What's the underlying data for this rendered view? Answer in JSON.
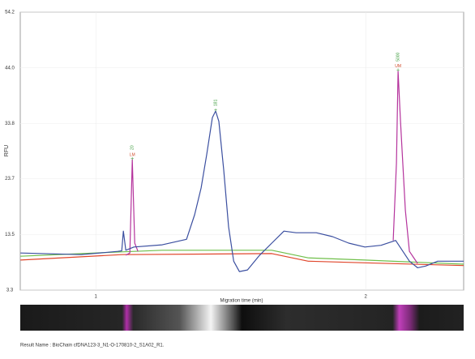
{
  "chart_data": {
    "type": "line",
    "x_label": "Migration time (min)",
    "y_label": "RFU",
    "footer": "Result Name : BioChain cfDNA123-3_N1-O-170810-2_S1A02_R1.",
    "xlim": [
      0.72,
      2.363
    ],
    "xticks": [
      1,
      2
    ],
    "ylim": [
      3.3,
      54.2
    ],
    "yticks": [
      3.3,
      13.5,
      23.7,
      33.8,
      {
        "value": 44,
        "label": "44.0"
      },
      54.2
    ],
    "grid": true,
    "series": [
      {
        "color": "#6fbf4a",
        "x": [
          0.721,
          1.096,
          1.246,
          1.652,
          1.787,
          1.997,
          2.363
        ],
        "values": [
          9.5,
          10.3,
          10.6,
          10.6,
          9.2,
          8.8,
          8.05
        ]
      },
      {
        "color": "#e0452a",
        "x": [
          0.721,
          1.096,
          1.652,
          1.787,
          1.997,
          2.363
        ],
        "values": [
          8.8,
          9.8,
          10.0,
          8.6,
          8.3,
          7.8
        ]
      },
      {
        "color": "#b5349d",
        "x": [
          1.111,
          1.126,
          1.135,
          1.144,
          1.156,
          1.787,
          2.102,
          2.114,
          2.12,
          2.129,
          2.147,
          2.162,
          2.192
        ],
        "values": [
          9.7,
          10.1,
          27.2,
          11.9,
          10.4,
          null,
          12.4,
          26.6,
          43.4,
          34.2,
          17.9,
          10.4,
          8.2
        ]
      },
      {
        "color": "#3b4fa0",
        "x": [
          0.721,
          0.946,
          1.081,
          1.096,
          1.102,
          1.111,
          1.141,
          1.246,
          1.336,
          1.366,
          1.39,
          1.411,
          1.432,
          1.444,
          1.456,
          1.474,
          1.492,
          1.511,
          1.532,
          1.562,
          1.607,
          1.652,
          1.697,
          1.742,
          1.817,
          1.877,
          1.937,
          1.997,
          2.057,
          2.111,
          2.162,
          2.192,
          2.222,
          2.267,
          2.363
        ],
        "values": [
          10.1,
          9.8,
          10.4,
          10.5,
          14.1,
          10.6,
          11.2,
          11.6,
          12.6,
          17.1,
          22.0,
          28.2,
          34.9,
          36.1,
          34.2,
          25.3,
          14.9,
          8.6,
          6.7,
          7.0,
          9.7,
          11.9,
          14.1,
          13.8,
          13.8,
          13.1,
          11.9,
          11.2,
          11.5,
          12.4,
          8.6,
          7.4,
          7.7,
          8.6,
          8.6
        ]
      }
    ],
    "annotations": [
      {
        "text": "20",
        "marker": "LM",
        "x": 1.135,
        "y": 27.2
      },
      {
        "text": "181",
        "x": 1.444,
        "y": 36.1
      },
      {
        "text": "5000",
        "marker": "UM",
        "x": 2.12,
        "y": 43.4
      }
    ]
  }
}
